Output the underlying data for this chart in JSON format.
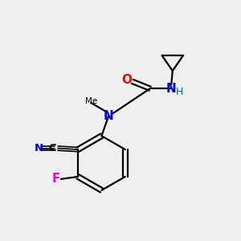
{
  "background_color": "#efefef",
  "bond_color": "#000000",
  "atom_colors": {
    "N": "#0000cc",
    "O": "#ff0000",
    "F": "#ee00ee",
    "H": "#007070",
    "C": "#000000"
  },
  "figure_size": [
    3.0,
    3.0
  ],
  "dpi": 100
}
